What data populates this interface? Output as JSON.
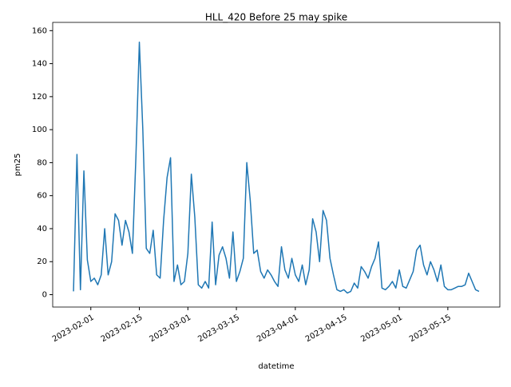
{
  "chart_data": {
    "type": "line",
    "title": "HLL_420 Before 25 may spike",
    "x_label": "datetime",
    "y_label": "pm25",
    "x": [
      "2023-01-27",
      "2023-01-28",
      "2023-01-29",
      "2023-01-30",
      "2023-01-31",
      "2023-02-01",
      "2023-02-02",
      "2023-02-03",
      "2023-02-04",
      "2023-02-05",
      "2023-02-06",
      "2023-02-07",
      "2023-02-08",
      "2023-02-09",
      "2023-02-10",
      "2023-02-11",
      "2023-02-12",
      "2023-02-13",
      "2023-02-14",
      "2023-02-15",
      "2023-02-16",
      "2023-02-17",
      "2023-02-18",
      "2023-02-19",
      "2023-02-20",
      "2023-02-21",
      "2023-02-22",
      "2023-02-23",
      "2023-02-24",
      "2023-02-25",
      "2023-02-26",
      "2023-02-27",
      "2023-02-28",
      "2023-03-01",
      "2023-03-02",
      "2023-03-03",
      "2023-03-04",
      "2023-03-05",
      "2023-03-06",
      "2023-03-07",
      "2023-03-08",
      "2023-03-09",
      "2023-03-10",
      "2023-03-11",
      "2023-03-12",
      "2023-03-13",
      "2023-03-14",
      "2023-03-15",
      "2023-03-16",
      "2023-03-17",
      "2023-03-18",
      "2023-03-19",
      "2023-03-20",
      "2023-03-21",
      "2023-03-22",
      "2023-03-23",
      "2023-03-24",
      "2023-03-25",
      "2023-03-26",
      "2023-03-27",
      "2023-03-28",
      "2023-03-29",
      "2023-03-30",
      "2023-03-31",
      "2023-04-01",
      "2023-04-02",
      "2023-04-03",
      "2023-04-04",
      "2023-04-05",
      "2023-04-06",
      "2023-04-07",
      "2023-04-08",
      "2023-04-09",
      "2023-04-10",
      "2023-04-11",
      "2023-04-12",
      "2023-04-13",
      "2023-04-14",
      "2023-04-15",
      "2023-04-16",
      "2023-04-17",
      "2023-04-18",
      "2023-04-19",
      "2023-04-20",
      "2023-04-21",
      "2023-04-22",
      "2023-04-23",
      "2023-04-24",
      "2023-04-25",
      "2023-04-26",
      "2023-04-27",
      "2023-04-28",
      "2023-04-29",
      "2023-04-30",
      "2023-05-01",
      "2023-05-02",
      "2023-05-03",
      "2023-05-04",
      "2023-05-05",
      "2023-05-06",
      "2023-05-07",
      "2023-05-08",
      "2023-05-09",
      "2023-05-10",
      "2023-05-11",
      "2023-05-12",
      "2023-05-13",
      "2023-05-14",
      "2023-05-15",
      "2023-05-16",
      "2023-05-17",
      "2023-05-18",
      "2023-05-19",
      "2023-05-20",
      "2023-05-21",
      "2023-05-22",
      "2023-05-23",
      "2023-05-24"
    ],
    "series": [
      {
        "name": "pm25",
        "color": "#1f77b4",
        "values": [
          2,
          85,
          3,
          75,
          21,
          8,
          10,
          6,
          12,
          40,
          12,
          20,
          49,
          45,
          30,
          45,
          38,
          25,
          83,
          153,
          100,
          28,
          25,
          39,
          12,
          10,
          45,
          71,
          83,
          8,
          18,
          6,
          8,
          25,
          73,
          47,
          6,
          4,
          8,
          4,
          44,
          6,
          24,
          29,
          22,
          10,
          38,
          8,
          14,
          22,
          80,
          57,
          25,
          27,
          14,
          10,
          15,
          12,
          8,
          5,
          29,
          15,
          10,
          22,
          12,
          8,
          18,
          6,
          15,
          46,
          38,
          20,
          51,
          45,
          22,
          12,
          3,
          2,
          3,
          1,
          2,
          7,
          4,
          17,
          14,
          10,
          17,
          22,
          32,
          4,
          3,
          5,
          8,
          4,
          15,
          5,
          4,
          9,
          14,
          27,
          30,
          18,
          12,
          20,
          15,
          8,
          18,
          5,
          3,
          3,
          4,
          5,
          5,
          6,
          13,
          8,
          3,
          2
        ]
      }
    ],
    "xlim": [
      "2023-01-21",
      "2023-05-30"
    ],
    "xticks": [
      "2023-02-01",
      "2023-02-15",
      "2023-03-01",
      "2023-03-15",
      "2023-04-01",
      "2023-04-15",
      "2023-05-01",
      "2023-05-15"
    ],
    "ylim": [
      -7.5,
      165
    ],
    "yticks": [
      0,
      20,
      40,
      60,
      80,
      100,
      120,
      140,
      160
    ]
  }
}
